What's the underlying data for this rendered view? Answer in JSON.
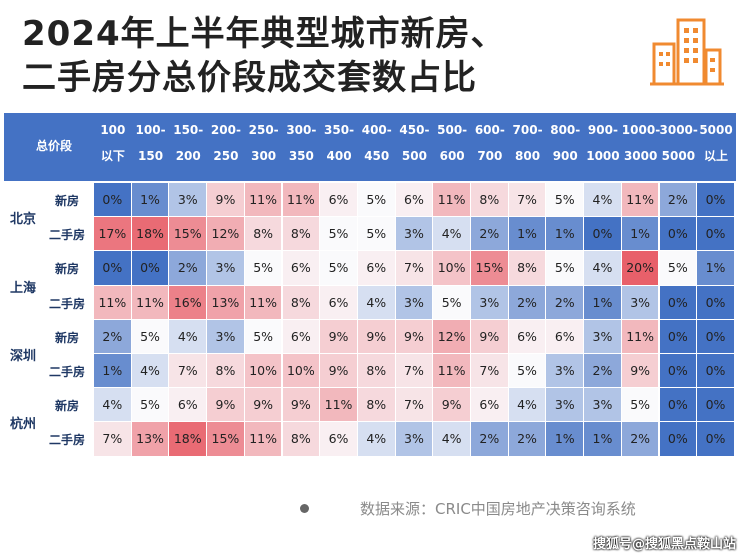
{
  "title_line1": "2024年上半年典型城市新房、",
  "title_line2": "二手房分总价段成交套数占比",
  "footer_source": "数据来源：CRIC中国房地产决策咨询系统",
  "watermark": "搜狐号@搜狐黑点鞍山站",
  "colors": {
    "header_bg": "#4472c4",
    "high": "#e8606a",
    "low": "#4472c4",
    "label_text": "#1f3864"
  },
  "chart_data": {
    "type": "heatmap",
    "title": "2024年上半年典型城市新房、二手房分总价段成交套数占比",
    "corner_label": "总价段",
    "columns": [
      [
        "100",
        "以下"
      ],
      [
        "100-",
        "150"
      ],
      [
        "150-",
        "200"
      ],
      [
        "200-",
        "250"
      ],
      [
        "250-",
        "300"
      ],
      [
        "300-",
        "350"
      ],
      [
        "350-",
        "400"
      ],
      [
        "400-",
        "450"
      ],
      [
        "450-",
        "500"
      ],
      [
        "500-",
        "600"
      ],
      [
        "600-",
        "700"
      ],
      [
        "700-",
        "800"
      ],
      [
        "800-",
        "900"
      ],
      [
        "900-",
        "1000"
      ],
      [
        "1000-",
        "3000"
      ],
      [
        "3000-",
        "5000"
      ],
      [
        "5000",
        "以上"
      ]
    ],
    "cities": [
      {
        "name": "北京",
        "rows": [
          {
            "type": "新房",
            "values": [
              0,
              1,
              3,
              9,
              11,
              11,
              6,
              5,
              6,
              11,
              8,
              7,
              5,
              4,
              11,
              2,
              0
            ]
          },
          {
            "type": "二手房",
            "values": [
              17,
              18,
              15,
              12,
              8,
              8,
              5,
              5,
              3,
              4,
              2,
              1,
              1,
              0,
              1,
              0,
              0
            ]
          }
        ]
      },
      {
        "name": "上海",
        "rows": [
          {
            "type": "新房",
            "values": [
              0,
              0,
              2,
              3,
              5,
              6,
              5,
              6,
              7,
              10,
              15,
              8,
              5,
              4,
              20,
              5,
              1
            ]
          },
          {
            "type": "二手房",
            "values": [
              11,
              11,
              16,
              13,
              11,
              8,
              6,
              4,
              3,
              5,
              3,
              2,
              2,
              1,
              3,
              0,
              0
            ]
          }
        ]
      },
      {
        "name": "深圳",
        "rows": [
          {
            "type": "新房",
            "values": [
              2,
              5,
              4,
              3,
              5,
              6,
              9,
              9,
              9,
              12,
              9,
              6,
              6,
              3,
              11,
              0,
              0
            ]
          },
          {
            "type": "二手房",
            "values": [
              1,
              4,
              7,
              8,
              10,
              10,
              9,
              8,
              7,
              11,
              7,
              5,
              3,
              2,
              9,
              0,
              0
            ]
          }
        ]
      },
      {
        "name": "杭州",
        "rows": [
          {
            "type": "新房",
            "values": [
              4,
              5,
              6,
              9,
              9,
              9,
              11,
              8,
              7,
              9,
              6,
              4,
              3,
              3,
              5,
              0,
              0
            ]
          },
          {
            "type": "二手房",
            "values": [
              7,
              13,
              18,
              15,
              11,
              8,
              6,
              4,
              3,
              4,
              2,
              2,
              1,
              1,
              2,
              0,
              0
            ]
          }
        ]
      }
    ],
    "unit": "%"
  }
}
